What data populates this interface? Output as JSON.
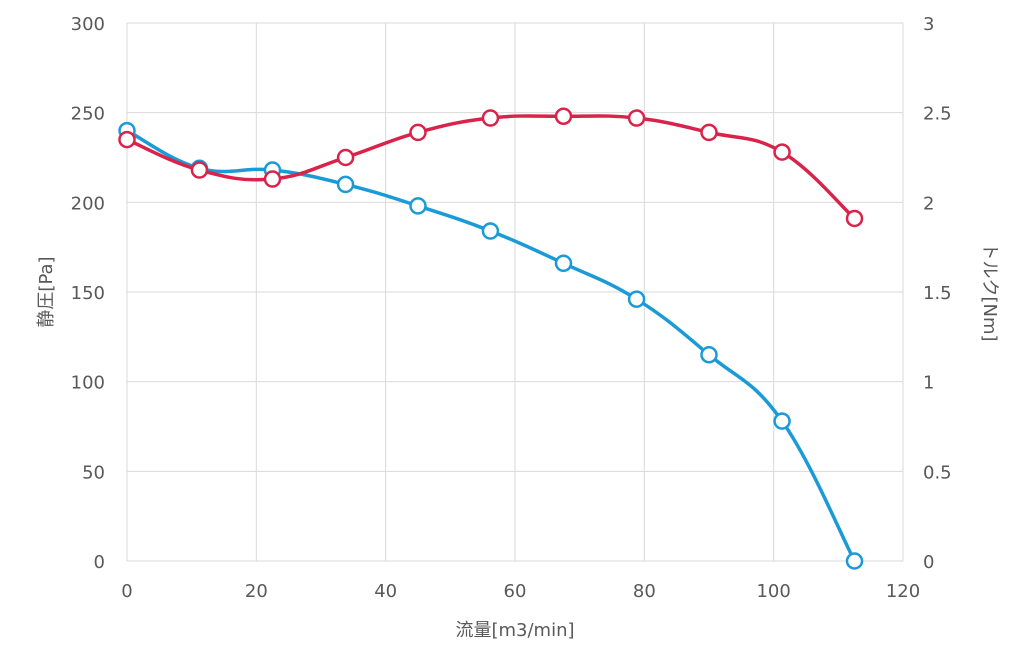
{
  "chart_data": {
    "type": "scatter",
    "title": "",
    "xlabel": "流量[m3/min]",
    "ylabel": "静圧[Pa]",
    "y2label": "トルク[Nm]",
    "xlim": [
      0,
      120
    ],
    "ylim": [
      0,
      300
    ],
    "y2lim": [
      0,
      3
    ],
    "x_ticks": [
      "0",
      "20",
      "40",
      "60",
      "80",
      "100",
      "120"
    ],
    "y_ticks": [
      "0",
      "50",
      "100",
      "150",
      "200",
      "250",
      "300"
    ],
    "y2_ticks": [
      "0",
      "0.5",
      "1",
      "1.5",
      "2",
      "2.5",
      "3"
    ],
    "grid": true,
    "legend": "none",
    "series": [
      {
        "axis": "left",
        "color": "#1a9bd7",
        "x": [
          0,
          11.2,
          22.5,
          33.8,
          45.0,
          56.2,
          67.5,
          78.8,
          90.0,
          101.3,
          112.5
        ],
        "y": [
          240,
          219,
          218,
          210,
          198,
          184,
          166,
          146,
          115,
          78,
          0
        ]
      },
      {
        "axis": "right",
        "color": "#d9234a",
        "x": [
          0,
          11.2,
          22.5,
          33.8,
          45.0,
          56.2,
          67.5,
          78.8,
          90.0,
          101.3,
          112.5
        ],
        "y": [
          2.35,
          2.18,
          2.13,
          2.25,
          2.39,
          2.47,
          2.48,
          2.47,
          2.39,
          2.28,
          1.91
        ]
      }
    ]
  }
}
